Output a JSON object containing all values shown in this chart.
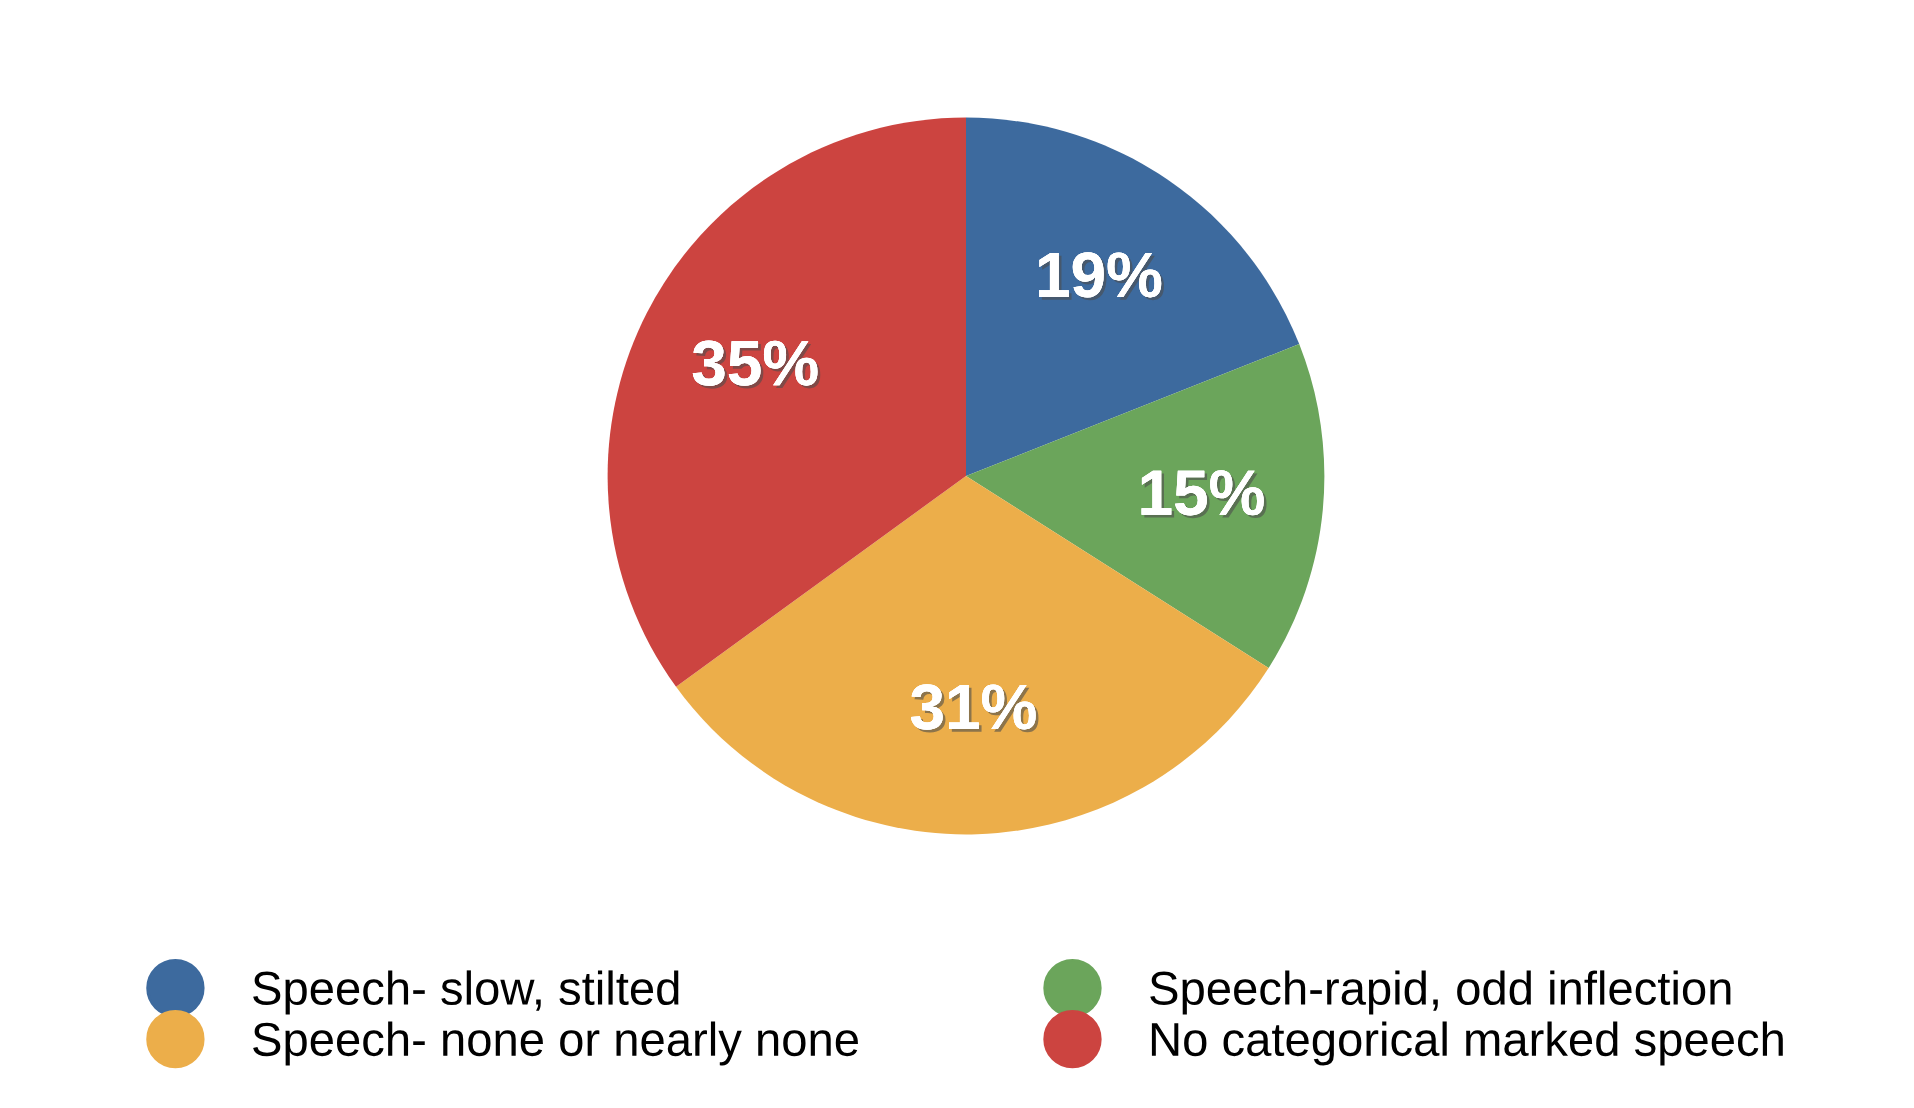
{
  "chart_data": {
    "type": "pie",
    "categories": [
      "Speech- slow, stilted",
      "Speech-rapid, odd inflection",
      "Speech- none or nearly none",
      "No categorical marked speech"
    ],
    "values": [
      19,
      15,
      31,
      35
    ],
    "colors": [
      "#3d6a9e",
      "#6ba55b",
      "#ecae4a",
      "#cc4440"
    ],
    "value_labels": [
      "19%",
      "15%",
      "31%",
      "35%"
    ],
    "legend": "bottom",
    "marker": "circle"
  }
}
